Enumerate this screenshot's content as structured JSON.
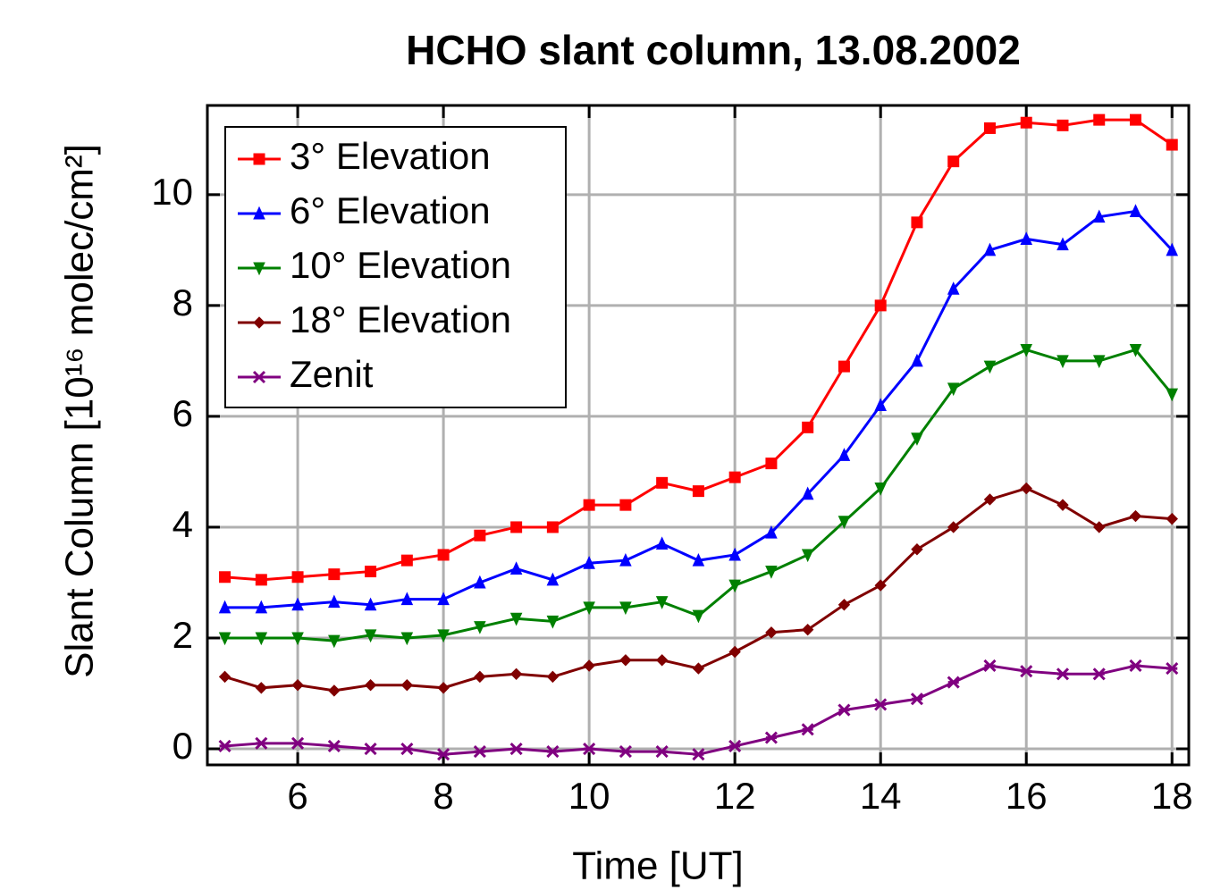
{
  "chart_data": {
    "type": "line",
    "title": "HCHO slant column, 13.08.2002",
    "x_label": "Time [UT]",
    "y_label": "Slant Column [10¹⁶ molec/cm²]",
    "x": [
      5,
      5.5,
      6,
      6.5,
      7,
      7.5,
      8,
      8.5,
      9,
      9.5,
      10,
      10.5,
      11,
      11.5,
      12,
      12.5,
      13,
      13.5,
      14,
      14.5,
      15,
      15.5,
      16,
      16.5,
      17,
      17.5,
      18
    ],
    "series": [
      {
        "name": "3° Elevation",
        "color": "#ff0000",
        "marker": "square",
        "values": [
          3.1,
          3.05,
          3.1,
          3.15,
          3.2,
          3.4,
          3.5,
          3.85,
          4.0,
          4.0,
          4.4,
          4.4,
          4.8,
          4.65,
          4.9,
          5.15,
          5.8,
          6.9,
          8.0,
          9.5,
          10.6,
          11.2,
          11.3,
          11.25,
          11.35,
          11.35,
          10.9
        ]
      },
      {
        "name": "6° Elevation",
        "color": "#0000ff",
        "marker": "triangle-up",
        "values": [
          2.55,
          2.55,
          2.6,
          2.65,
          2.6,
          2.7,
          2.7,
          3.0,
          3.25,
          3.05,
          3.35,
          3.4,
          3.7,
          3.4,
          3.5,
          3.9,
          4.6,
          5.3,
          6.2,
          7.0,
          8.3,
          9.0,
          9.2,
          9.1,
          9.6,
          9.7,
          9.0
        ]
      },
      {
        "name": "10° Elevation",
        "color": "#008000",
        "marker": "triangle-down",
        "values": [
          2.0,
          2.0,
          2.0,
          1.95,
          2.05,
          2.0,
          2.05,
          2.2,
          2.35,
          2.3,
          2.55,
          2.55,
          2.65,
          2.4,
          2.95,
          3.2,
          3.5,
          4.1,
          4.7,
          5.6,
          6.5,
          6.9,
          7.2,
          7.0,
          7.0,
          7.2,
          6.4
        ]
      },
      {
        "name": "18° Elevation",
        "color": "#800000",
        "marker": "diamond",
        "values": [
          1.3,
          1.1,
          1.15,
          1.05,
          1.15,
          1.15,
          1.1,
          1.3,
          1.35,
          1.3,
          1.5,
          1.6,
          1.6,
          1.45,
          1.75,
          2.1,
          2.15,
          2.6,
          2.95,
          3.6,
          4.0,
          4.5,
          4.7,
          4.4,
          4.0,
          4.2,
          4.15
        ]
      },
      {
        "name": "Zenit",
        "color": "#800080",
        "marker": "star",
        "values": [
          0.05,
          0.1,
          0.1,
          0.05,
          0.0,
          0.0,
          -0.1,
          -0.05,
          0.0,
          -0.05,
          0.0,
          -0.05,
          -0.05,
          -0.1,
          0.05,
          0.2,
          0.35,
          0.7,
          0.8,
          0.9,
          1.2,
          1.5,
          1.4,
          1.35,
          1.35,
          1.5,
          1.45
        ]
      }
    ],
    "xlim": [
      4.76,
      18.23
    ],
    "ylim": [
      -0.29,
      11.61
    ],
    "xticks": [
      6,
      8,
      10,
      12,
      14,
      16,
      18
    ],
    "yticks": [
      0,
      2,
      4,
      6,
      8,
      10
    ],
    "grid": true,
    "legend": "upper left"
  }
}
